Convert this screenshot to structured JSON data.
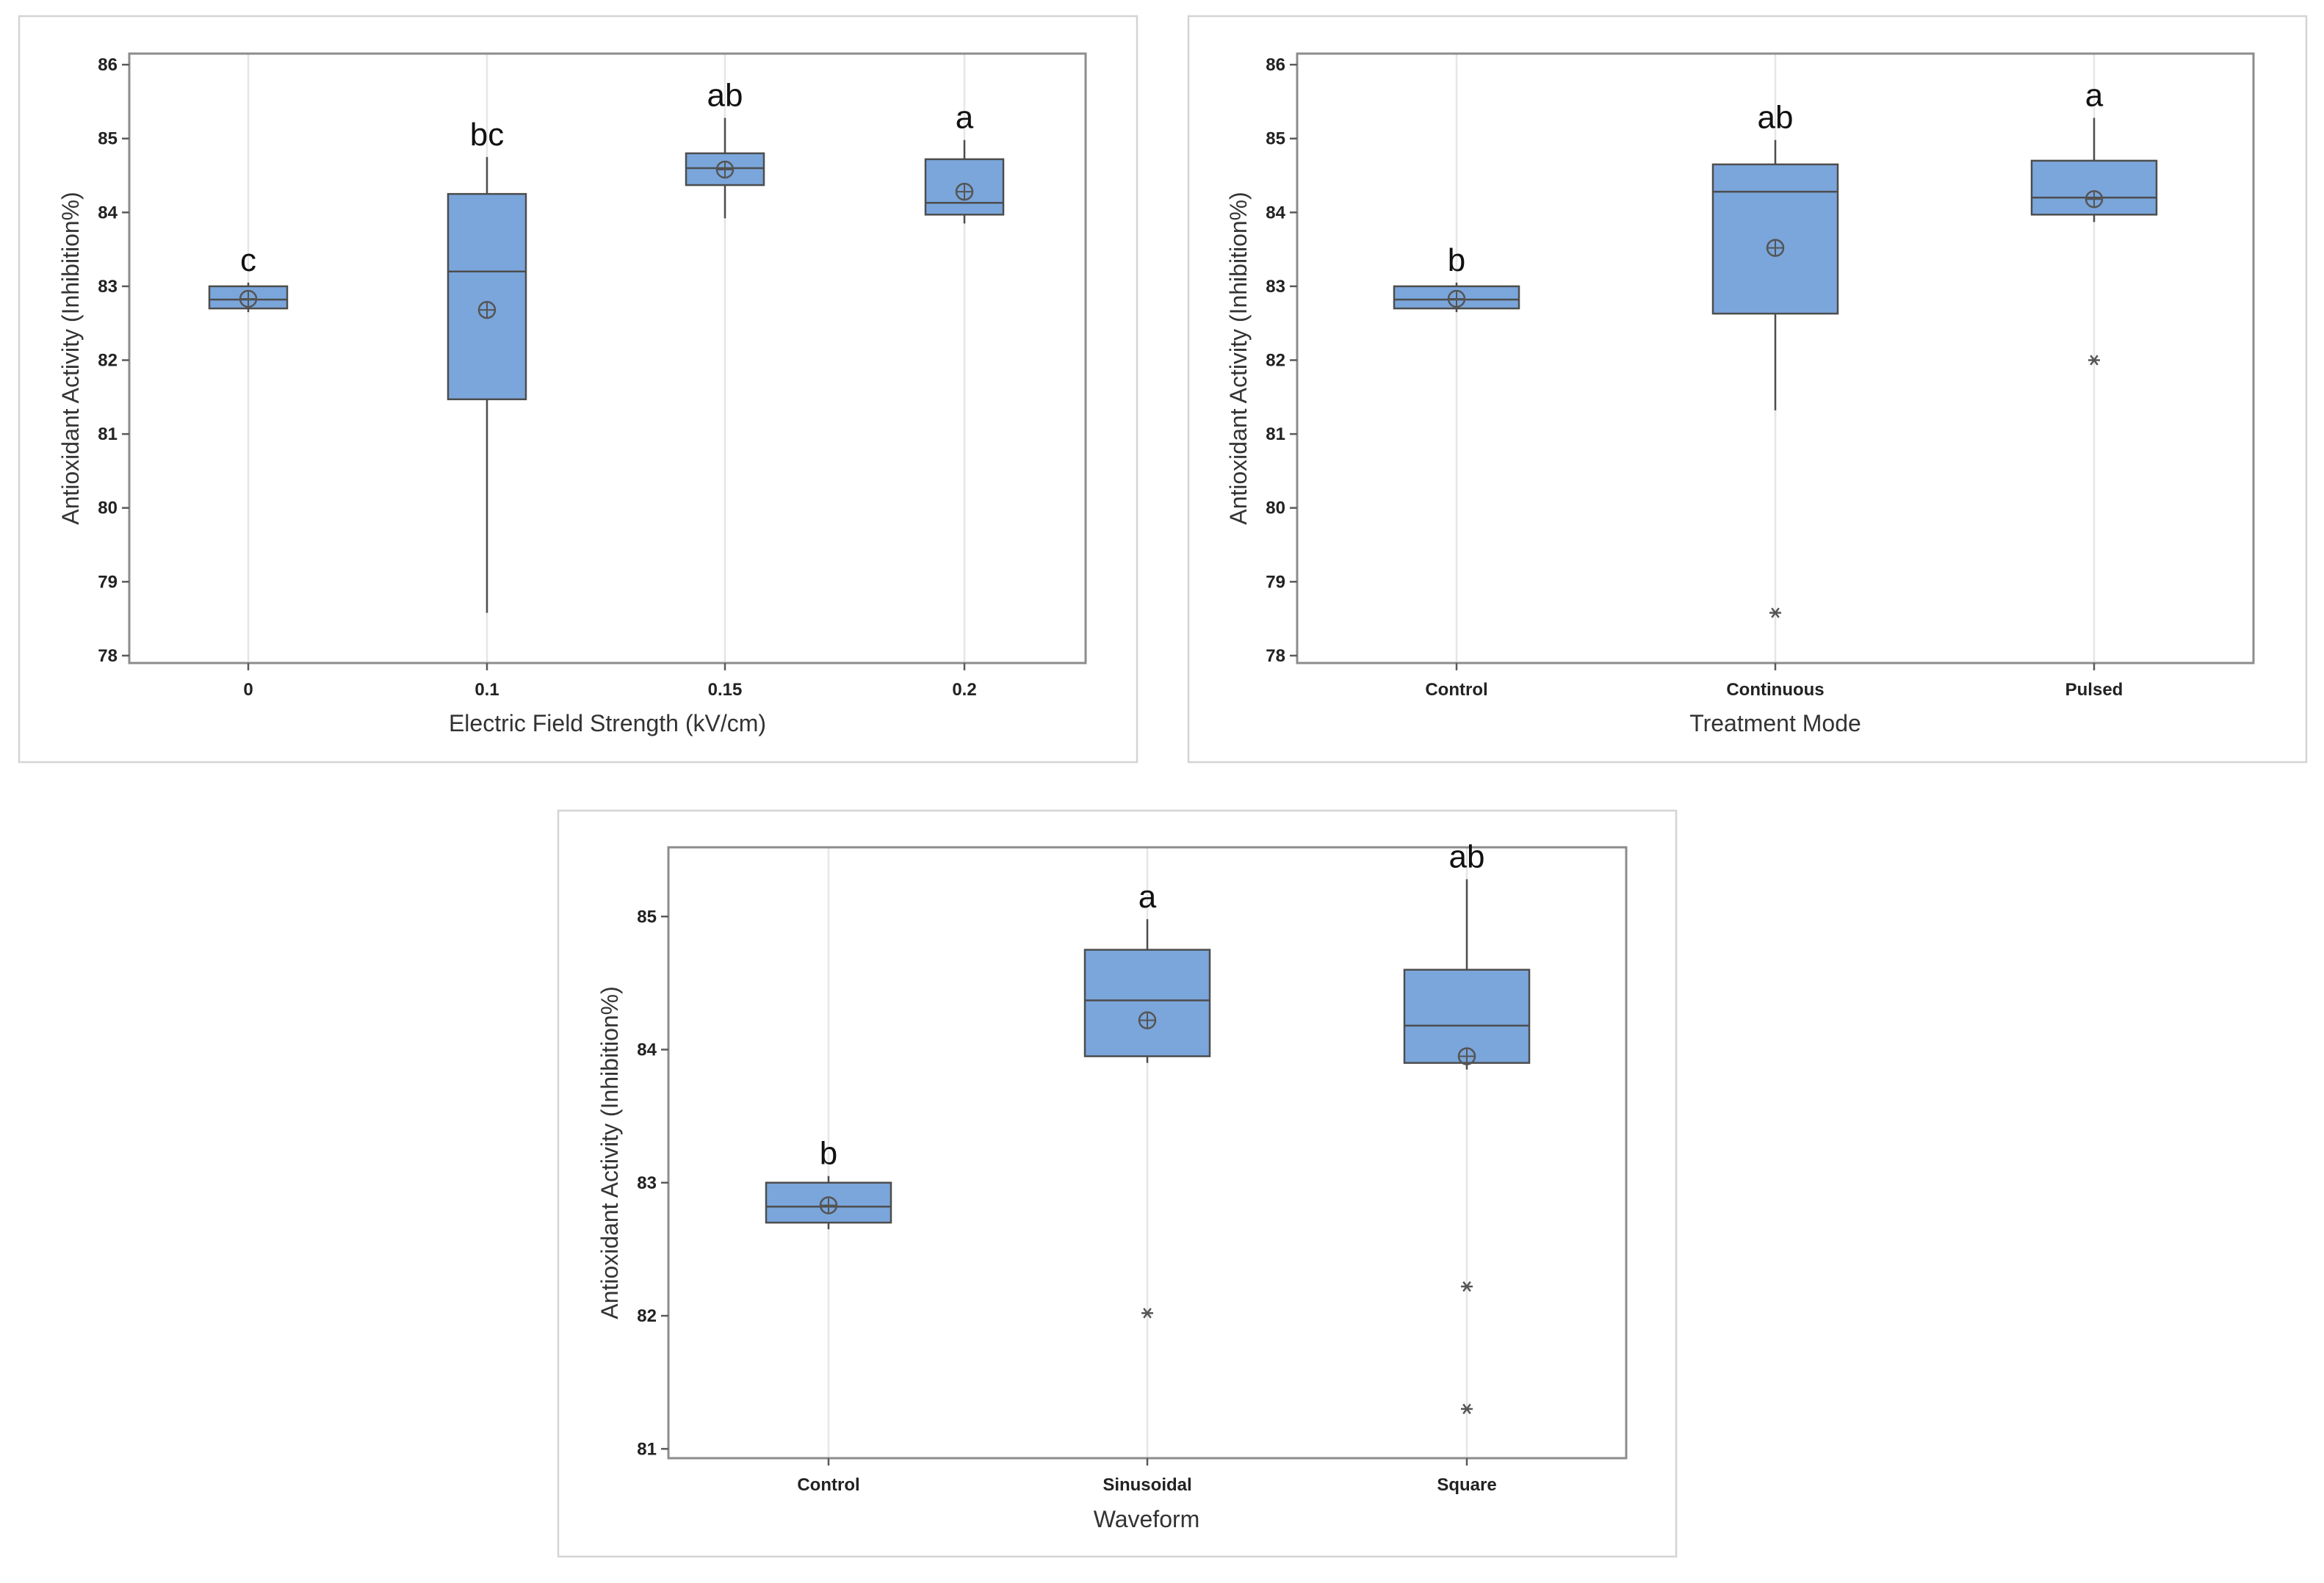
{
  "colors": {
    "box_fill": "#7aa6db",
    "box_stroke": "#4d4d4d",
    "grid": "#e6e6e6"
  },
  "chart_data": [
    {
      "type": "boxplot",
      "xlabel": "Electric Field Strength (kV/cm)",
      "ylabel": "Antioxidant Activity (Inhibition%)",
      "ylim": [
        77.9,
        86.15
      ],
      "yticks": [
        78,
        79,
        80,
        81,
        82,
        83,
        84,
        85,
        86
      ],
      "categories": [
        "0",
        "0.1",
        "0.15",
        "0.2"
      ],
      "groups": [
        {
          "label": "0",
          "q1": 82.7,
          "median": 82.82,
          "q3": 83.0,
          "whisker_low": 82.65,
          "whisker_high": 83.05,
          "mean": 82.83,
          "outliers": [],
          "letter": "c"
        },
        {
          "label": "0.1",
          "q1": 81.47,
          "median": 83.2,
          "q3": 84.25,
          "whisker_low": 78.58,
          "whisker_high": 84.75,
          "mean": 82.68,
          "outliers": [],
          "letter": "bc"
        },
        {
          "label": "0.15",
          "q1": 84.37,
          "median": 84.6,
          "q3": 84.8,
          "whisker_low": 83.92,
          "whisker_high": 85.28,
          "mean": 84.58,
          "outliers": [],
          "letter": "ab"
        },
        {
          "label": "0.2",
          "q1": 83.97,
          "median": 84.13,
          "q3": 84.72,
          "whisker_low": 83.85,
          "whisker_high": 84.98,
          "mean": 84.28,
          "outliers": [],
          "letter": "a"
        }
      ]
    },
    {
      "type": "boxplot",
      "xlabel": "Treatment Mode",
      "ylabel": "Antioxidant Activity (Inhibition%)",
      "ylim": [
        77.9,
        86.15
      ],
      "yticks": [
        78,
        79,
        80,
        81,
        82,
        83,
        84,
        85,
        86
      ],
      "categories": [
        "Control",
        "Continuous",
        "Pulsed"
      ],
      "groups": [
        {
          "label": "Control",
          "q1": 82.7,
          "median": 82.82,
          "q3": 83.0,
          "whisker_low": 82.65,
          "whisker_high": 83.05,
          "mean": 82.83,
          "outliers": [],
          "letter": "b"
        },
        {
          "label": "Continuous",
          "q1": 82.63,
          "median": 84.28,
          "q3": 84.65,
          "whisker_low": 81.32,
          "whisker_high": 84.98,
          "mean": 83.52,
          "outliers": [
            78.58
          ],
          "letter": "ab"
        },
        {
          "label": "Pulsed",
          "q1": 83.97,
          "median": 84.2,
          "q3": 84.7,
          "whisker_low": 83.87,
          "whisker_high": 85.28,
          "mean": 84.18,
          "outliers": [
            82.0
          ],
          "letter": "a"
        }
      ]
    },
    {
      "type": "boxplot",
      "xlabel": "Waveform",
      "ylabel": "Antioxidant Activity (Inhibition%)",
      "ylim": [
        80.93,
        85.52
      ],
      "yticks": [
        81,
        82,
        83,
        84,
        85
      ],
      "categories": [
        "Control",
        "Sinusoidal",
        "Square"
      ],
      "groups": [
        {
          "label": "Control",
          "q1": 82.7,
          "median": 82.82,
          "q3": 83.0,
          "whisker_low": 82.65,
          "whisker_high": 83.05,
          "mean": 82.83,
          "outliers": [],
          "letter": "b"
        },
        {
          "label": "Sinusoidal",
          "q1": 83.95,
          "median": 84.37,
          "q3": 84.75,
          "whisker_low": 83.9,
          "whisker_high": 84.98,
          "mean": 84.22,
          "outliers": [
            82.02
          ],
          "letter": "a"
        },
        {
          "label": "Square",
          "q1": 83.9,
          "median": 84.18,
          "q3": 84.6,
          "whisker_low": 83.85,
          "whisker_high": 85.28,
          "mean": 83.95,
          "outliers": [
            82.22,
            81.3
          ],
          "letter": "ab"
        }
      ]
    }
  ]
}
